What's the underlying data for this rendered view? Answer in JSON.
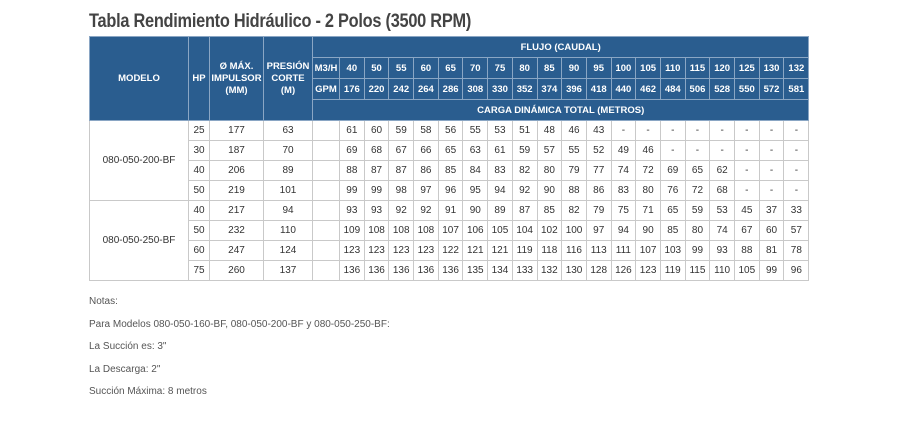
{
  "title": "Tabla Rendimiento Hidráulico - 2 Polos (3500 RPM)",
  "headers": {
    "modelo": "MODELO",
    "hp": "HP",
    "impulsor": [
      "Ø MÁX.",
      "IMPULSOR",
      "(MM)"
    ],
    "presion": [
      "PRESIÓN",
      "CORTE",
      "(M)"
    ],
    "flujo": "FLUJO (CAUDAL)",
    "m3h_label": "M3/H",
    "gpm_label": "GPM",
    "carga": "CARGA DINÁMICA TOTAL (METROS)"
  },
  "m3h": [
    "40",
    "50",
    "55",
    "60",
    "65",
    "70",
    "75",
    "80",
    "85",
    "90",
    "95",
    "100",
    "105",
    "110",
    "115",
    "120",
    "125",
    "130",
    "132"
  ],
  "gpm": [
    "176",
    "220",
    "242",
    "264",
    "286",
    "308",
    "330",
    "352",
    "374",
    "396",
    "418",
    "440",
    "462",
    "484",
    "506",
    "528",
    "550",
    "572",
    "581"
  ],
  "groups": [
    {
      "model": "080-050-200-BF",
      "rows": [
        {
          "hp": "25",
          "imp": "177",
          "pres": "63",
          "vals": [
            "61",
            "60",
            "59",
            "58",
            "56",
            "55",
            "53",
            "51",
            "48",
            "46",
            "43",
            "-",
            "-",
            "-",
            "-",
            "-",
            "-",
            "-",
            "-"
          ]
        },
        {
          "hp": "30",
          "imp": "187",
          "pres": "70",
          "vals": [
            "69",
            "68",
            "67",
            "66",
            "65",
            "63",
            "61",
            "59",
            "57",
            "55",
            "52",
            "49",
            "46",
            "-",
            "-",
            "-",
            "-",
            "-",
            "-"
          ]
        },
        {
          "hp": "40",
          "imp": "206",
          "pres": "89",
          "vals": [
            "88",
            "87",
            "87",
            "86",
            "85",
            "84",
            "83",
            "82",
            "80",
            "79",
            "77",
            "74",
            "72",
            "69",
            "65",
            "62",
            "-",
            "-",
            "-"
          ]
        },
        {
          "hp": "50",
          "imp": "219",
          "pres": "101",
          "vals": [
            "99",
            "99",
            "98",
            "97",
            "96",
            "95",
            "94",
            "92",
            "90",
            "88",
            "86",
            "83",
            "80",
            "76",
            "72",
            "68",
            "-",
            "-",
            "-"
          ]
        }
      ]
    },
    {
      "model": "080-050-250-BF",
      "rows": [
        {
          "hp": "40",
          "imp": "217",
          "pres": "94",
          "vals": [
            "93",
            "93",
            "92",
            "92",
            "91",
            "90",
            "89",
            "87",
            "85",
            "82",
            "79",
            "75",
            "71",
            "65",
            "59",
            "53",
            "45",
            "37",
            "33"
          ]
        },
        {
          "hp": "50",
          "imp": "232",
          "pres": "110",
          "vals": [
            "109",
            "108",
            "108",
            "108",
            "107",
            "106",
            "105",
            "104",
            "102",
            "100",
            "97",
            "94",
            "90",
            "85",
            "80",
            "74",
            "67",
            "60",
            "57"
          ]
        },
        {
          "hp": "60",
          "imp": "247",
          "pres": "124",
          "vals": [
            "123",
            "123",
            "123",
            "123",
            "122",
            "121",
            "121",
            "119",
            "118",
            "116",
            "113",
            "111",
            "107",
            "103",
            "99",
            "93",
            "88",
            "81",
            "78"
          ]
        },
        {
          "hp": "75",
          "imp": "260",
          "pres": "137",
          "vals": [
            "136",
            "136",
            "136",
            "136",
            "136",
            "135",
            "134",
            "133",
            "132",
            "130",
            "128",
            "126",
            "123",
            "119",
            "115",
            "110",
            "105",
            "99",
            "96"
          ]
        }
      ]
    }
  ],
  "notes": [
    "Notas:",
    "Para Modelos 080-050-160-BF, 080-050-200-BF y 080-050-250-BF:",
    "La Succión es: 3\"",
    "La Descarga: 2\"",
    "Succión Máxima: 8 metros"
  ]
}
